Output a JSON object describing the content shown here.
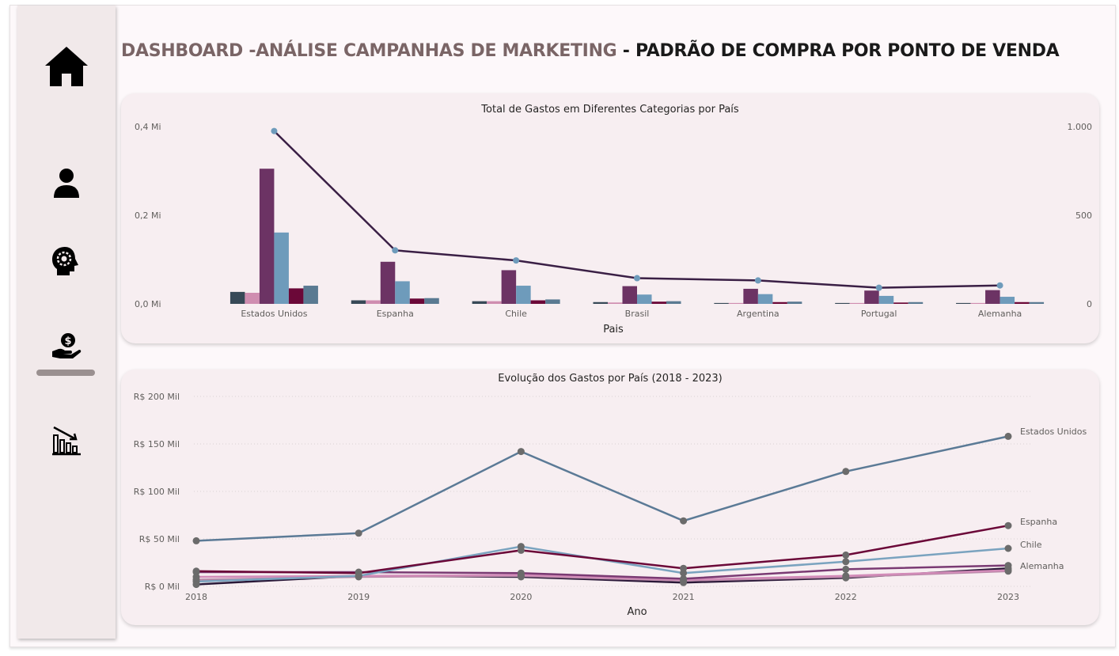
{
  "header": {
    "title_part1": "DASHBOARD -ANÁLISE CAMPANHAS DE MARKETING",
    "title_part2": " - PADRÃO DE COMPRA POR PONTO DE VENDA"
  },
  "sidebar": {
    "items": [
      {
        "icon": "home-icon"
      },
      {
        "icon": "user-icon"
      },
      {
        "icon": "head-gear-icon"
      },
      {
        "icon": "hand-money-icon",
        "active": true
      },
      {
        "icon": "chart-decline-icon"
      }
    ]
  },
  "chart_data": [
    {
      "type": "bar",
      "title": "Total de Gastos em Diferentes Categorias por País",
      "xlabel": "Pais",
      "ylabel": "",
      "categories": [
        "Estados Unidos",
        "Espanha",
        "Chile",
        "Brasil",
        "Argentina",
        "Portugal",
        "Alemanha"
      ],
      "ylim": [
        0,
        0.4
      ],
      "y_ticks": [
        "0,4 Mi",
        "0,2 Mi",
        "0,0 Mi"
      ],
      "y2lim": [
        0,
        1000
      ],
      "y2_ticks": [
        "1.000",
        "500",
        "0"
      ],
      "bar_colors": [
        "#374957",
        "#cf8db0",
        "#6c3364",
        "#6e9bbb",
        "#6b0838",
        "#5a7a92"
      ],
      "series": [
        {
          "values": [
            0.027,
            0.008,
            0.006,
            0.004,
            0.002,
            0.002,
            0.002
          ]
        },
        {
          "values": [
            0.025,
            0.008,
            0.006,
            0.003,
            0.002,
            0.002,
            0.002
          ]
        },
        {
          "values": [
            0.305,
            0.095,
            0.076,
            0.04,
            0.034,
            0.03,
            0.031
          ]
        },
        {
          "values": [
            0.161,
            0.051,
            0.041,
            0.021,
            0.022,
            0.018,
            0.016
          ]
        },
        {
          "values": [
            0.035,
            0.012,
            0.008,
            0.005,
            0.004,
            0.003,
            0.004
          ]
        },
        {
          "values": [
            0.041,
            0.013,
            0.01,
            0.006,
            0.005,
            0.004,
            0.004
          ]
        }
      ],
      "line": {
        "color": "#3a1f45",
        "marker_color": "#6e9bbb",
        "values": [
          975,
          302,
          245,
          145,
          132,
          91,
          104
        ]
      }
    },
    {
      "type": "line",
      "title": "Evolução dos Gastos por País (2018 - 2023)",
      "xlabel": "Ano",
      "ylabel": "",
      "x": [
        "2018",
        "2019",
        "2020",
        "2021",
        "2022",
        "2023"
      ],
      "ylim": [
        0,
        200
      ],
      "y_ticks": [
        "R$ 200 Mil",
        "R$ 150 Mil",
        "R$ 100 Mil",
        "R$ 50 Mil",
        "R$ 0 Mil"
      ],
      "series": [
        {
          "name": "Estados Unidos",
          "color": "#5b7a96",
          "values": [
            48,
            56,
            142,
            69,
            121,
            158
          ]
        },
        {
          "name": "Espanha",
          "color": "#6b0838",
          "values": [
            16,
            14,
            38,
            19,
            33,
            64
          ]
        },
        {
          "name": "Chile",
          "color": "#7aa3bf",
          "values": [
            5,
            11,
            42,
            14,
            26,
            40
          ]
        },
        {
          "name": "Alemanha",
          "color": "#7a3a73",
          "values": [
            15,
            15,
            14,
            8,
            18,
            22
          ]
        },
        {
          "name": "",
          "color": "#d28bb8",
          "values": [
            10,
            11,
            12,
            7,
            11,
            17
          ]
        },
        {
          "name": "",
          "color": "#b88aa8",
          "values": [
            7,
            10,
            11,
            6,
            10,
            16
          ]
        },
        {
          "name": "",
          "color": "#2a1838",
          "values": [
            2,
            11,
            10,
            4,
            9,
            19
          ]
        }
      ]
    }
  ]
}
